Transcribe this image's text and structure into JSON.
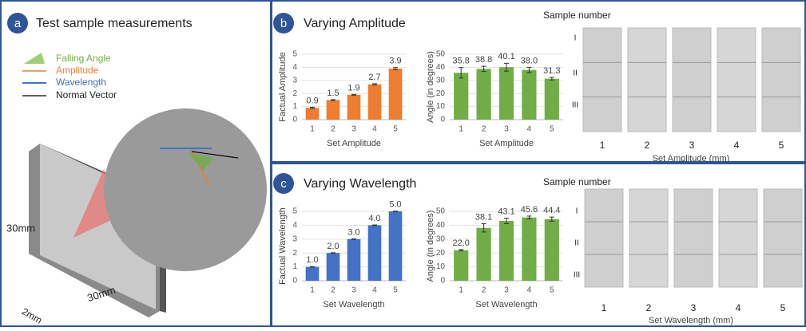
{
  "panel_a": {
    "letter": "a",
    "title": "Test sample measurements",
    "legend": [
      "Falling Angle",
      "Amplitude",
      "Wavelength",
      "Normal Vector"
    ],
    "dims": [
      "30mm",
      "30mm",
      "2mm"
    ]
  },
  "panel_b": {
    "letter": "b",
    "title": "Varying Amplitude",
    "sample_header": "Sample number",
    "rows": [
      "I",
      "II",
      "III"
    ],
    "columns": [
      "1",
      "2",
      "3",
      "4",
      "5"
    ],
    "x_label": "Set Amplitude (mm)"
  },
  "panel_c": {
    "letter": "c",
    "title": "Varying Wavelength",
    "sample_header": "Sample number",
    "rows": [
      "I",
      "II",
      "III"
    ],
    "columns": [
      "1",
      "2",
      "3",
      "4",
      "5"
    ],
    "x_label": "Set Wavelength (mm)"
  },
  "chart_data": [
    {
      "type": "bar",
      "categories": [
        "1",
        "2",
        "3",
        "4",
        "5"
      ],
      "values": [
        0.9,
        1.5,
        1.9,
        2.7,
        3.9
      ],
      "errors": [
        0.05,
        0.03,
        0.03,
        0.05,
        0.08
      ],
      "color": "#ed7d31",
      "x_label": "Set Amplitude",
      "y_label": "Factual Amplitude",
      "ylim": [
        0,
        5
      ],
      "yticks": [
        0,
        1,
        2,
        3,
        4,
        5
      ]
    },
    {
      "type": "bar",
      "categories": [
        "1",
        "2",
        "3",
        "4",
        "5"
      ],
      "values": [
        35.8,
        38.8,
        40.1,
        38.0,
        31.3
      ],
      "value_labels": [
        "35.8",
        "38.8",
        "40.1",
        "38.0",
        "31.3"
      ],
      "errors": [
        4,
        2,
        3,
        2,
        1
      ],
      "color": "#70ad47",
      "x_label": "Set Amplitude",
      "y_label": "Angle (in degrees)",
      "ylim": [
        0,
        50
      ],
      "yticks": [
        0,
        10,
        20,
        30,
        40,
        50
      ]
    },
    {
      "type": "bar",
      "categories": [
        "1",
        "2",
        "3",
        "4",
        "5"
      ],
      "values": [
        1.0,
        2.0,
        3.0,
        4.0,
        5.0
      ],
      "value_labels": [
        "1.0",
        "2.0",
        "3.0",
        "4.0",
        "5.0"
      ],
      "errors": [
        0.02,
        0.02,
        0.02,
        0.02,
        0.02
      ],
      "color": "#4472c4",
      "x_label": "Set Wavelength",
      "y_label": "Factual Wavelength",
      "ylim": [
        0,
        5
      ],
      "yticks": [
        0,
        1,
        2,
        3,
        4,
        5
      ]
    },
    {
      "type": "bar",
      "categories": [
        "1",
        "2",
        "3",
        "4",
        "5"
      ],
      "values": [
        22.0,
        38.1,
        43.1,
        45.6,
        44.4
      ],
      "value_labels": [
        "22.0",
        "38.1",
        "43.1",
        "45.6",
        "44.4"
      ],
      "errors": [
        0.5,
        3,
        2,
        1,
        1.5
      ],
      "color": "#70ad47",
      "x_label": "Set Wavelength",
      "y_label": "Angle (in degrees)",
      "ylim": [
        0,
        50
      ],
      "yticks": [
        0,
        10,
        20,
        30,
        40,
        50
      ]
    }
  ]
}
